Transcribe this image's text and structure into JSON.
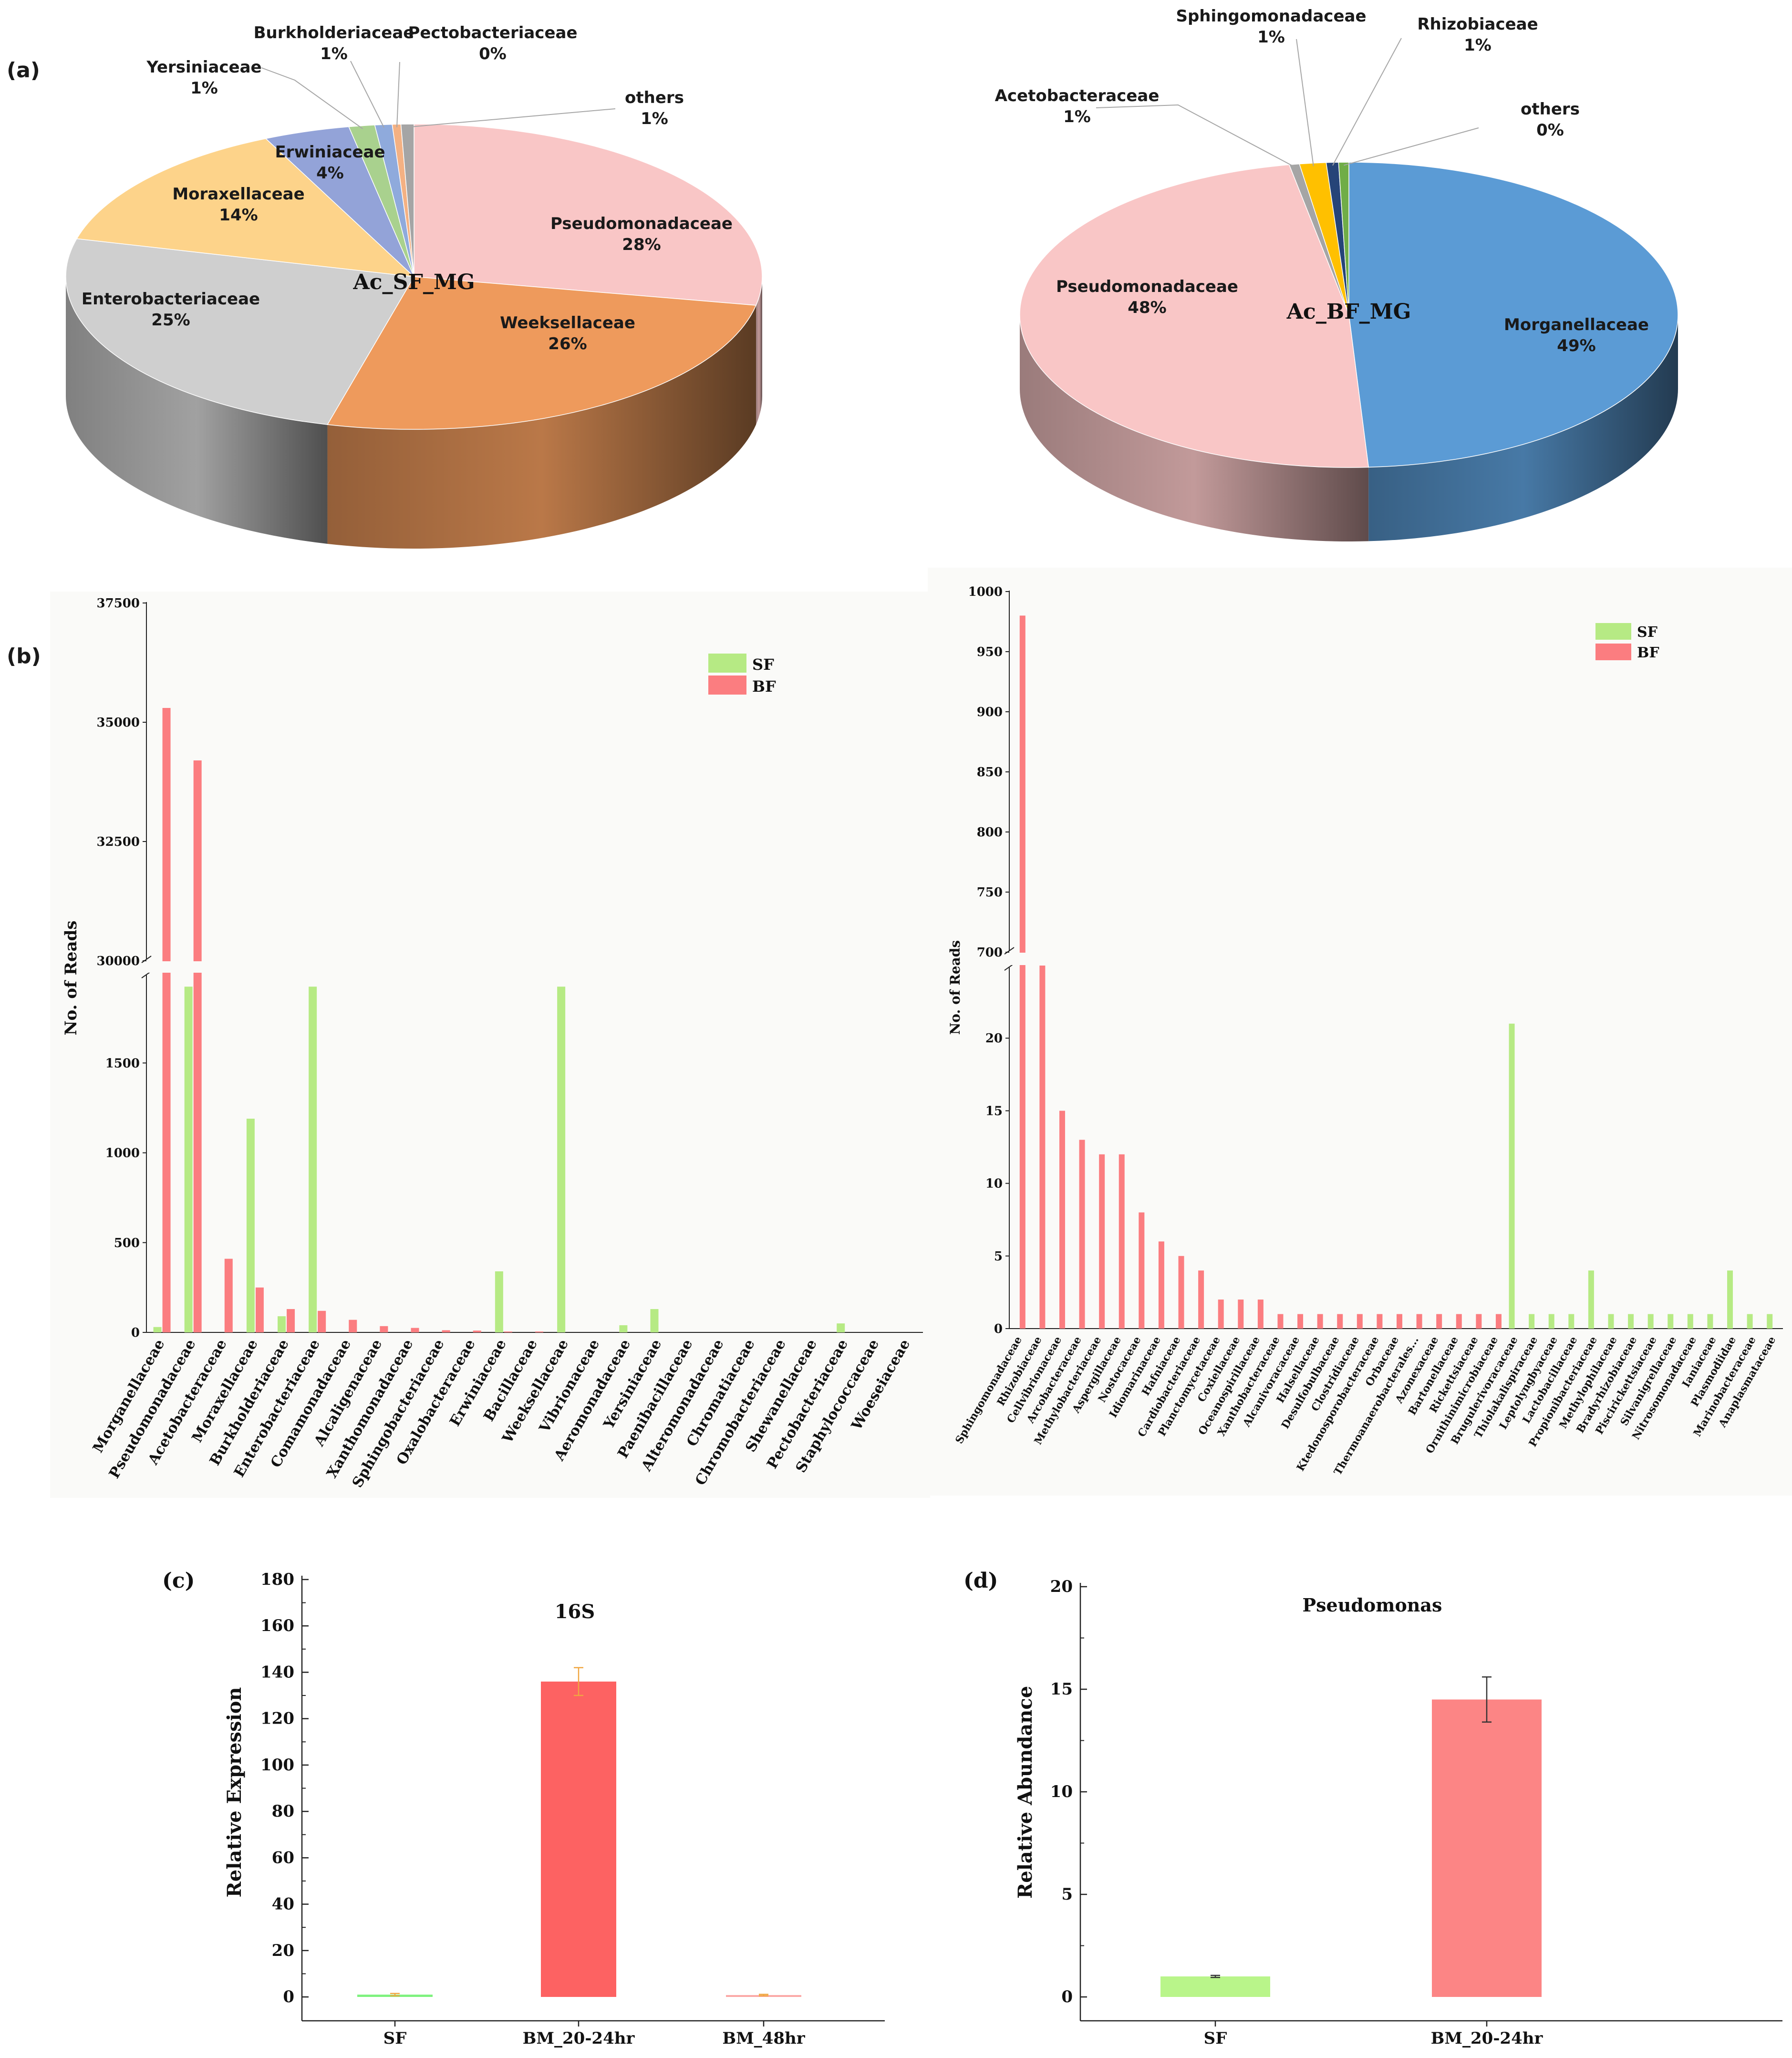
{
  "panel_labels": {
    "a": "(a)",
    "b": "(b)",
    "c": "(c)",
    "d": "(d)"
  },
  "chart_data": [
    {
      "id": "pie_sf",
      "type": "pie",
      "title": "Ac_SF_MG",
      "slices": [
        {
          "name": "Pseudomonadaceae",
          "pct_label": "28%",
          "value": 28,
          "color": "#f9c6c6"
        },
        {
          "name": "Weeksellaceae",
          "pct_label": "26%",
          "value": 26,
          "color": "#ee9a5c"
        },
        {
          "name": "Enterobacteriaceae",
          "pct_label": "25%",
          "value": 25,
          "color": "#cfcfcf"
        },
        {
          "name": "Moraxellaceae",
          "pct_label": "14%",
          "value": 14,
          "color": "#fdd38a"
        },
        {
          "name": "Erwiniaceae",
          "pct_label": "4%",
          "value": 4,
          "color": "#93a3d8"
        },
        {
          "name": "Yersiniaceae",
          "pct_label": "1%",
          "value": 1.2,
          "color": "#a9d18e"
        },
        {
          "name": "Burkholderiaceae",
          "pct_label": "1%",
          "value": 0.8,
          "color": "#8faadc"
        },
        {
          "name": "Pectobacteriaceae",
          "pct_label": "0%",
          "value": 0.4,
          "color": "#f4b183"
        },
        {
          "name": "others",
          "pct_label": "1%",
          "value": 0.6,
          "color": "#a5a5a5"
        }
      ]
    },
    {
      "id": "pie_bf",
      "type": "pie",
      "title": "Ac_BF_MG",
      "slices": [
        {
          "name": "Morganellaceae",
          "pct_label": "49%",
          "value": 49,
          "color": "#5b9bd5"
        },
        {
          "name": "Pseudomonadaceae",
          "pct_label": "48%",
          "value": 48,
          "color": "#f9c6c6"
        },
        {
          "name": "Acetobacteraceae",
          "pct_label": "1%",
          "value": 0.5,
          "color": "#a5a5a5"
        },
        {
          "name": "Sphingomonadaceae",
          "pct_label": "1%",
          "value": 1.3,
          "color": "#ffc000"
        },
        {
          "name": "Rhizobiaceae",
          "pct_label": "1%",
          "value": 0.6,
          "color": "#264478"
        },
        {
          "name": "others",
          "pct_label": "0%",
          "value": 0.5,
          "color": "#70ad47"
        }
      ]
    },
    {
      "id": "bar_b_left",
      "type": "bar",
      "ylabel": "No. of Reads",
      "yticks_low": [
        0,
        500,
        1000,
        1500
      ],
      "yticks_high": [
        30000,
        32500,
        35000,
        37500
      ],
      "axis_break": [
        2000,
        30000
      ],
      "legend": [
        "SF",
        "BF"
      ],
      "series_colors": {
        "SF": "#b6ea84",
        "BF": "#fb7d80"
      },
      "categories": [
        "Morganellaceae",
        "Pseudomonadaceae",
        "Acetobacteraceae",
        "Moraxellaceae",
        "Burkholderiaceae",
        "Enterobacteriaceae",
        "Comamonadaceae",
        "Alcaligenaceae",
        "Xanthomonadaceae",
        "Sphingobacteriaceae",
        "Oxalobacteraceae",
        "Erwiniaceae",
        "Bacillaceae",
        "Weeksellaceae",
        "Vibrionaceae",
        "Aeromonadaceae",
        "Yersiniaceae",
        "Paenibacillaceae",
        "Alteromonadaceae",
        "Chromatiaceae",
        "Chromobacteriaceae",
        "Shewanellaceae",
        "Pectobacteriaceae",
        "Staphylococcaceae",
        "Woeseiaceae"
      ],
      "series": [
        {
          "name": "SF",
          "values": [
            30,
            1925,
            0,
            1190,
            90,
            1925,
            0,
            0,
            0,
            0,
            0,
            340,
            0,
            1925,
            0,
            40,
            130,
            0,
            0,
            0,
            0,
            0,
            50,
            0,
            0
          ]
        },
        {
          "name": "BF",
          "values": [
            35300,
            34200,
            410,
            250,
            130,
            120,
            70,
            35,
            25,
            12,
            10,
            5,
            5,
            0,
            0,
            0,
            0,
            0,
            0,
            0,
            0,
            0,
            0,
            0,
            0
          ]
        }
      ]
    },
    {
      "id": "bar_b_right",
      "type": "bar",
      "ylabel": "No. of Reads",
      "yticks_low": [
        0,
        5,
        10,
        15,
        20
      ],
      "yticks_high": [
        700,
        750,
        800,
        850,
        900,
        950,
        1000
      ],
      "axis_break": [
        25,
        700
      ],
      "legend": [
        "SF",
        "BF"
      ],
      "series_colors": {
        "SF": "#b6ea84",
        "BF": "#fb7d80"
      },
      "categories": [
        "Sphingomonadaceae",
        "Rhizobiaceae",
        "Cellvibrionaceae",
        "Arcobacteraceae",
        "Methylobacteriaceae",
        "Aspergillaceae",
        "Nostocaceae",
        "Idiomarinaceae",
        "Hafniaceae",
        "Cardiobacteriaceae",
        "Planctomycetaceae",
        "Coxiellaceae",
        "Oceanospirillaceae",
        "Xanthobacteraceae",
        "Alcanivoracaceae",
        "Halsellaceae",
        "Desulfobulbaceae",
        "Clostridiaceae",
        "Ktedonosporobacteraceae",
        "Orbaceae",
        "Thermoanaerobacterales...",
        "Azonexaceae",
        "Bartonellaceae",
        "Rickettsiaceae",
        "Ornithinimicrobiaceae",
        "Brugulerivoracaceae",
        "Thiolakalispiraceae",
        "Leptolyngbyaceae",
        "Lactobacillaceae",
        "Propionibacteriaceae",
        "Methylophilaceae",
        "Bradyrhizobiaceae",
        "Piscirickettsiaceae",
        "Silvanigrellaceae",
        "Nitrosomonadaceae",
        "Ianiaceae",
        "Plasmodiidae",
        "Marinobacteraceae",
        "Anaplasmataceae"
      ],
      "series": [
        {
          "name": "SF",
          "values": [
            0,
            0,
            0,
            0,
            0,
            0,
            0,
            0,
            0,
            0,
            0,
            0,
            0,
            0,
            0,
            0,
            0,
            0,
            0,
            0,
            0,
            0,
            0,
            0,
            0,
            21,
            1,
            1,
            1,
            4,
            1,
            1,
            1,
            1,
            1,
            1,
            4,
            1,
            1
          ]
        },
        {
          "name": "BF",
          "values": [
            980,
            25,
            15,
            13,
            12,
            12,
            8,
            6,
            5,
            4,
            2,
            2,
            2,
            1,
            1,
            1,
            1,
            1,
            1,
            1,
            1,
            1,
            1,
            1,
            1,
            0,
            0,
            0,
            0,
            0,
            0,
            0,
            0,
            0,
            0,
            0,
            0,
            0,
            0
          ]
        }
      ]
    },
    {
      "id": "bar_c",
      "type": "bar",
      "title": "16S",
      "ylabel": "Relative Expression",
      "ylim": [
        0,
        180
      ],
      "yticks": [
        0,
        20,
        40,
        60,
        80,
        100,
        120,
        140,
        160,
        180
      ],
      "categories": [
        "SF",
        "BM_20-24hr",
        "BM_48hr"
      ],
      "values": [
        1,
        136,
        0.8
      ],
      "errors": [
        0.5,
        6,
        0.3
      ],
      "colors": [
        "#7ef27e",
        "#fd6262",
        "#fba7a5"
      ],
      "error_color": "#f0a640"
    },
    {
      "id": "bar_d",
      "type": "bar",
      "title": "Pseudomonas",
      "ylabel": "Relative Abundance",
      "ylim": [
        0,
        20
      ],
      "yticks": [
        0,
        5,
        10,
        15,
        20
      ],
      "categories": [
        "SF",
        "BM_20-24hr"
      ],
      "values": [
        1,
        14.5
      ],
      "errors": [
        0.05,
        1.1
      ],
      "colors": [
        "#b9f58a",
        "#fc8585"
      ],
      "error_color": "#333333"
    }
  ]
}
